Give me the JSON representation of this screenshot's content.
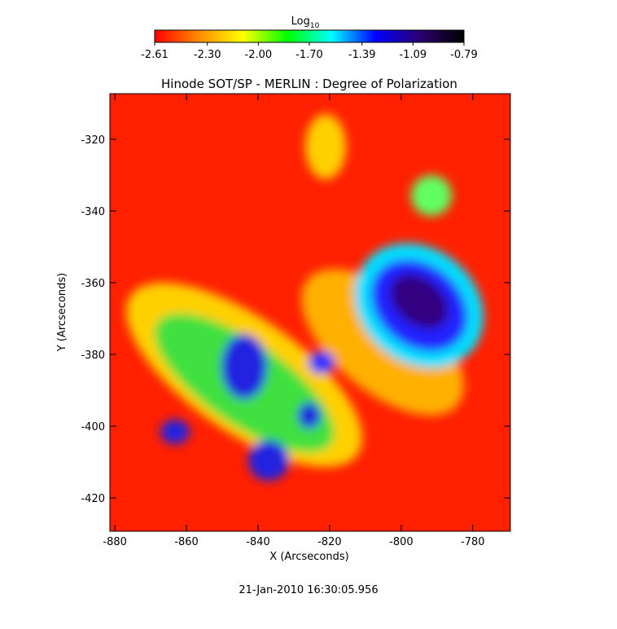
{
  "chart_data": {
    "type": "image",
    "title": "Hinode SOT/SP - MERLIN : Degree of Polarization",
    "xlabel": "X (Arcseconds)",
    "ylabel": "Y (Arcseconds)",
    "xlim": [
      -881.4,
      -769.5
    ],
    "xticks": [
      -880,
      -860,
      -840,
      -820,
      -800,
      -780
    ],
    "ylim": [
      -429.3,
      -307.3
    ],
    "yticks": [
      -420,
      -400,
      -380,
      -360,
      -340,
      -320
    ],
    "colorbar_label": "Log",
    "colorbar_label_sub": "10",
    "colorbar_lim": [
      -2.61,
      -0.79
    ],
    "colorbar_ticks": [
      -2.61,
      {
        "value": -2.3,
        "label": "-2.30"
      },
      {
        "value": -2.0,
        "label": "-2.00"
      },
      {
        "value": -1.7,
        "label": "-1.70"
      },
      -1.39,
      -1.09,
      -0.79
    ],
    "colormap": [
      "#ff0000",
      "#ff8c00",
      "#ffff00",
      "#00ff00",
      "#00ffff",
      "#0000ff",
      "#2a0070",
      "#000000"
    ],
    "footer": "21-Jan-2010 16:30:05.956"
  }
}
